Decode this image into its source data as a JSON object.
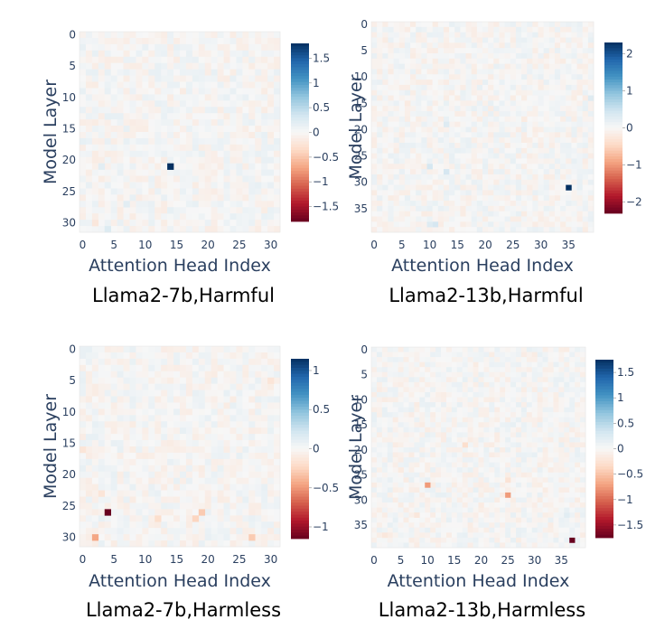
{
  "colors": {
    "deep_red": "#67001f",
    "red": "#b2182b",
    "light_red": "#d6604d",
    "salmon": "#f4a582",
    "peach": "#fddbc7",
    "neutral": "#f7f7f7",
    "pale_blue": "#d1e5f0",
    "sky": "#92c5de",
    "blue": "#4393c3",
    "mid_blue": "#2166ac",
    "navy": "#053061",
    "axis_text": "#2a3f5f"
  },
  "chart_data": [
    {
      "type": "heatmap",
      "title": "Llama2-7b,Harmful",
      "xlabel": "Attention Head Index",
      "ylabel": "Model Layer",
      "x_range": [
        0,
        31
      ],
      "y_range": [
        0,
        31
      ],
      "x_ticks": [
        0,
        5,
        10,
        15,
        20,
        25,
        30
      ],
      "y_ticks": [
        0,
        5,
        10,
        15,
        20,
        25,
        30
      ],
      "zmin": -1.8,
      "zmax": 1.8,
      "colorbar_ticks": [
        1.5,
        1,
        0.5,
        0,
        -0.5,
        -1,
        -1.5
      ],
      "colorbar_labels": [
        "1.5",
        "1",
        "0.5",
        "0",
        "−0.5",
        "−1",
        "−1.5"
      ],
      "highlights": [
        {
          "x": 14,
          "y": 21,
          "value": 1.8
        },
        {
          "x": 4,
          "y": 31,
          "value": 0.25
        },
        {
          "x": 7,
          "y": 27,
          "value": 0.2
        },
        {
          "x": 2,
          "y": 30,
          "value": -0.2
        },
        {
          "x": 3,
          "y": 21,
          "value": 0.2
        },
        {
          "x": 4,
          "y": 13,
          "value": 0.15
        },
        {
          "x": 0,
          "y": 17,
          "value": 0.15
        },
        {
          "x": 28,
          "y": 17,
          "value": -0.1
        },
        {
          "x": 14,
          "y": 28,
          "value": 0.15
        },
        {
          "x": 16,
          "y": 15,
          "value": -0.1
        }
      ]
    },
    {
      "type": "heatmap",
      "title": "Llama2-13b,Harmful",
      "xlabel": "Attention Head Index",
      "ylabel": "Model Layer",
      "x_range": [
        0,
        39
      ],
      "y_range": [
        0,
        39
      ],
      "x_ticks": [
        0,
        5,
        10,
        15,
        20,
        25,
        30,
        35
      ],
      "y_ticks": [
        0,
        5,
        10,
        15,
        20,
        25,
        30,
        35
      ],
      "zmin": -2.3,
      "zmax": 2.3,
      "colorbar_ticks": [
        2,
        1,
        0,
        -1,
        -2
      ],
      "colorbar_labels": [
        "2",
        "1",
        "0",
        "−1",
        "−2"
      ],
      "highlights": [
        {
          "x": 35,
          "y": 31,
          "value": 2.3
        },
        {
          "x": 10,
          "y": 27,
          "value": 0.4
        },
        {
          "x": 13,
          "y": 28,
          "value": 0.4
        },
        {
          "x": 13,
          "y": 19,
          "value": 0.3
        },
        {
          "x": 11,
          "y": 38,
          "value": 0.4
        },
        {
          "x": 10,
          "y": 38,
          "value": 0.3
        },
        {
          "x": 39,
          "y": 14,
          "value": 0.3
        },
        {
          "x": 27,
          "y": 18,
          "value": -0.2
        },
        {
          "x": 6,
          "y": 15,
          "value": -0.2
        },
        {
          "x": 18,
          "y": 22,
          "value": -0.15
        }
      ]
    },
    {
      "type": "heatmap",
      "title": "Llama2-7b,Harmless",
      "xlabel": "Attention Head Index",
      "ylabel": "Model Layer",
      "x_range": [
        0,
        31
      ],
      "y_range": [
        0,
        31
      ],
      "x_ticks": [
        0,
        5,
        10,
        15,
        20,
        25,
        30
      ],
      "y_ticks": [
        0,
        5,
        10,
        15,
        20,
        25,
        30
      ],
      "zmin": -1.15,
      "zmax": 1.15,
      "colorbar_ticks": [
        1,
        0.5,
        0,
        -0.5,
        -1
      ],
      "colorbar_labels": [
        "1",
        "0.5",
        "0",
        "−0.5",
        "−1"
      ],
      "highlights": [
        {
          "x": 4,
          "y": 26,
          "value": -1.15
        },
        {
          "x": 2,
          "y": 30,
          "value": -0.45
        },
        {
          "x": 19,
          "y": 26,
          "value": -0.3
        },
        {
          "x": 18,
          "y": 27,
          "value": -0.25
        },
        {
          "x": 27,
          "y": 30,
          "value": -0.3
        },
        {
          "x": 12,
          "y": 27,
          "value": -0.2
        },
        {
          "x": 30,
          "y": 5,
          "value": -0.15
        },
        {
          "x": 0,
          "y": 16,
          "value": -0.15
        },
        {
          "x": 3,
          "y": 23,
          "value": -0.15
        }
      ]
    },
    {
      "type": "heatmap",
      "title": "Llama2-13b,Harmless",
      "xlabel": "Attention Head Index",
      "ylabel": "Model Layer",
      "x_range": [
        0,
        39
      ],
      "y_range": [
        0,
        39
      ],
      "x_ticks": [
        0,
        5,
        10,
        15,
        20,
        25,
        30,
        35
      ],
      "y_ticks": [
        0,
        5,
        10,
        15,
        20,
        25,
        30,
        35
      ],
      "zmin": -1.75,
      "zmax": 1.75,
      "colorbar_ticks": [
        1.5,
        1,
        0.5,
        0,
        -0.5,
        -1,
        -1.5
      ],
      "colorbar_labels": [
        "1.5",
        "1",
        "0.5",
        "0",
        "−0.5",
        "−1",
        "−1.5"
      ],
      "highlights": [
        {
          "x": 37,
          "y": 38,
          "value": -1.75
        },
        {
          "x": 10,
          "y": 27,
          "value": -0.75
        },
        {
          "x": 25,
          "y": 29,
          "value": -0.75
        },
        {
          "x": 17,
          "y": 19,
          "value": -0.3
        },
        {
          "x": 25,
          "y": 26,
          "value": -0.25
        },
        {
          "x": 36,
          "y": 33,
          "value": 0.2
        },
        {
          "x": 2,
          "y": 37,
          "value": -0.2
        },
        {
          "x": 8,
          "y": 33,
          "value": -0.2
        },
        {
          "x": 33,
          "y": 4,
          "value": -0.1
        },
        {
          "x": 5,
          "y": 24,
          "value": -0.15
        },
        {
          "x": 20,
          "y": 31,
          "value": -0.15
        }
      ]
    }
  ]
}
